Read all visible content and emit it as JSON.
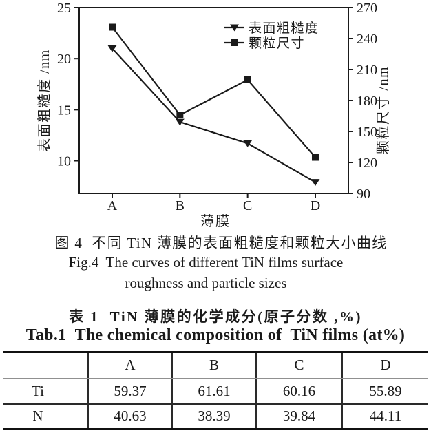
{
  "figure": {
    "caption_cn": "图 4  不同 TiN 薄膜的表面粗糙度和颗粒大小曲线",
    "caption_en_line1": "Fig.4  The curves of different TiN films surface",
    "caption_en_line2": "roughness and particle sizes"
  },
  "chart_data": {
    "type": "line",
    "categories": [
      "A",
      "B",
      "C",
      "D"
    ],
    "series": [
      {
        "name": "表面粗糙度",
        "axis": "left",
        "marker": "triangle-down",
        "values": [
          21,
          13.8,
          11.7,
          7.9
        ]
      },
      {
        "name": "颗粒尺寸",
        "axis": "right",
        "marker": "square",
        "values": [
          251,
          166,
          200,
          125
        ]
      }
    ],
    "xlabel": "薄膜",
    "ylabel_left": "表面粗糙度 /nm",
    "ylabel_right": "颗粒尺寸 /nm",
    "ylim_left": [
      6.8,
      25
    ],
    "yticks_left": [
      10,
      15,
      20,
      25
    ],
    "ylim_right": [
      90,
      270
    ],
    "yticks_right": [
      90,
      120,
      150,
      180,
      210,
      240,
      270
    ],
    "legend_position": "inside-top-center",
    "grid": false,
    "line_color": "#1a1a1a"
  },
  "table_section": {
    "title_cn": "表 1  TiN 薄膜的化学成分(原子分数 ,%)",
    "title_en": "Tab.1  The chemical composition of  TiN films (at%)",
    "columns": [
      "",
      "A",
      "B",
      "C",
      "D"
    ],
    "rows": [
      {
        "label": "Ti",
        "values": [
          "59.37",
          "61.61",
          "60.16",
          "55.89"
        ]
      },
      {
        "label": "N",
        "values": [
          "40.63",
          "38.39",
          "39.84",
          "44.11"
        ]
      }
    ]
  }
}
